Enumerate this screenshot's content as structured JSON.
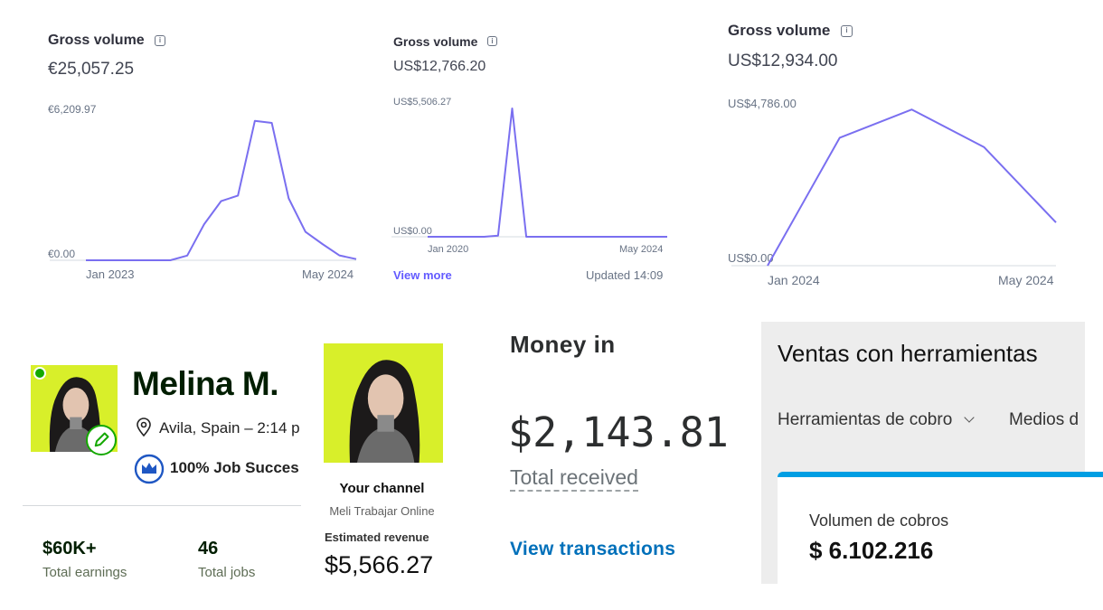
{
  "cards": [
    {
      "title": "Gross volume",
      "amount": "€25,057.25",
      "y_max_label": "€6,209.97",
      "y_min_label": "€0.00",
      "x_start_label": "Jan 2023",
      "x_end_label": "May 2024"
    },
    {
      "title": "Gross volume",
      "amount": "US$12,766.20",
      "y_max_label": "US$5,506.27",
      "y_min_label": "US$0.00",
      "x_start_label": "Jan 2020",
      "x_end_label": "May 2024",
      "view_more": "View more",
      "updated": "Updated 14:09"
    },
    {
      "title": "Gross volume",
      "amount": "US$12,934.00",
      "y_max_label": "US$4,786.00",
      "y_min_label": "US$0.00",
      "x_start_label": "Jan 2024",
      "x_end_label": "May 2024"
    }
  ],
  "chart_data": [
    {
      "type": "line",
      "title": "Gross volume",
      "x_labels": [
        "Jan 2023",
        "May 2024"
      ],
      "ylim": [
        0,
        6209.97
      ],
      "series": [
        {
          "values": [
            0,
            0,
            0,
            0,
            0,
            0,
            200,
            1550,
            2540,
            2780,
            5990,
            5900,
            2660,
            1220,
            700,
            210,
            50
          ]
        }
      ]
    },
    {
      "type": "line",
      "title": "Gross volume",
      "x_labels": [
        "Jan 2020",
        "May 2024"
      ],
      "ylim": [
        0,
        5506.27
      ],
      "series": [
        {
          "values": [
            0,
            0,
            0,
            0,
            0,
            50,
            5506.27,
            0,
            0,
            0,
            0,
            0,
            0,
            0,
            0,
            0,
            0,
            0
          ]
        }
      ]
    },
    {
      "type": "line",
      "title": "Gross volume",
      "x_labels": [
        "Jan 2024",
        "May 2024"
      ],
      "ylim": [
        0,
        4786
      ],
      "series": [
        {
          "values": [
            0,
            3850,
            4700,
            3570,
            1300
          ]
        }
      ]
    }
  ],
  "profile": {
    "name": "Melina M.",
    "location": "Avila, Spain – 2:14 p",
    "job_success": "100% Job Succes",
    "stats": [
      {
        "value": "$60K+",
        "label": "Total earnings"
      },
      {
        "value": "46",
        "label": "Total jobs"
      }
    ],
    "online_color": "#14a800",
    "accent": "#d8ef2a"
  },
  "channel": {
    "title": "Your channel",
    "subtitle": "Meli Trabajar Online",
    "revenue_label": "Estimated revenue",
    "revenue": "$5,566.27"
  },
  "money_in": {
    "title": "Money in",
    "amount": "$2,143.81",
    "caption": "Total received",
    "link": "View transactions",
    "link_color": "#0070ba"
  },
  "ventas": {
    "title": "Ventas con herramientas",
    "dropdown": "Herramientas de cobro",
    "tab2": "Medios d",
    "card_label": "Volumen de cobros",
    "card_value": "$ 6.102.216",
    "accent": "#009ee3"
  },
  "colors": {
    "line": "#7a6ff0",
    "link": "#635bff"
  }
}
